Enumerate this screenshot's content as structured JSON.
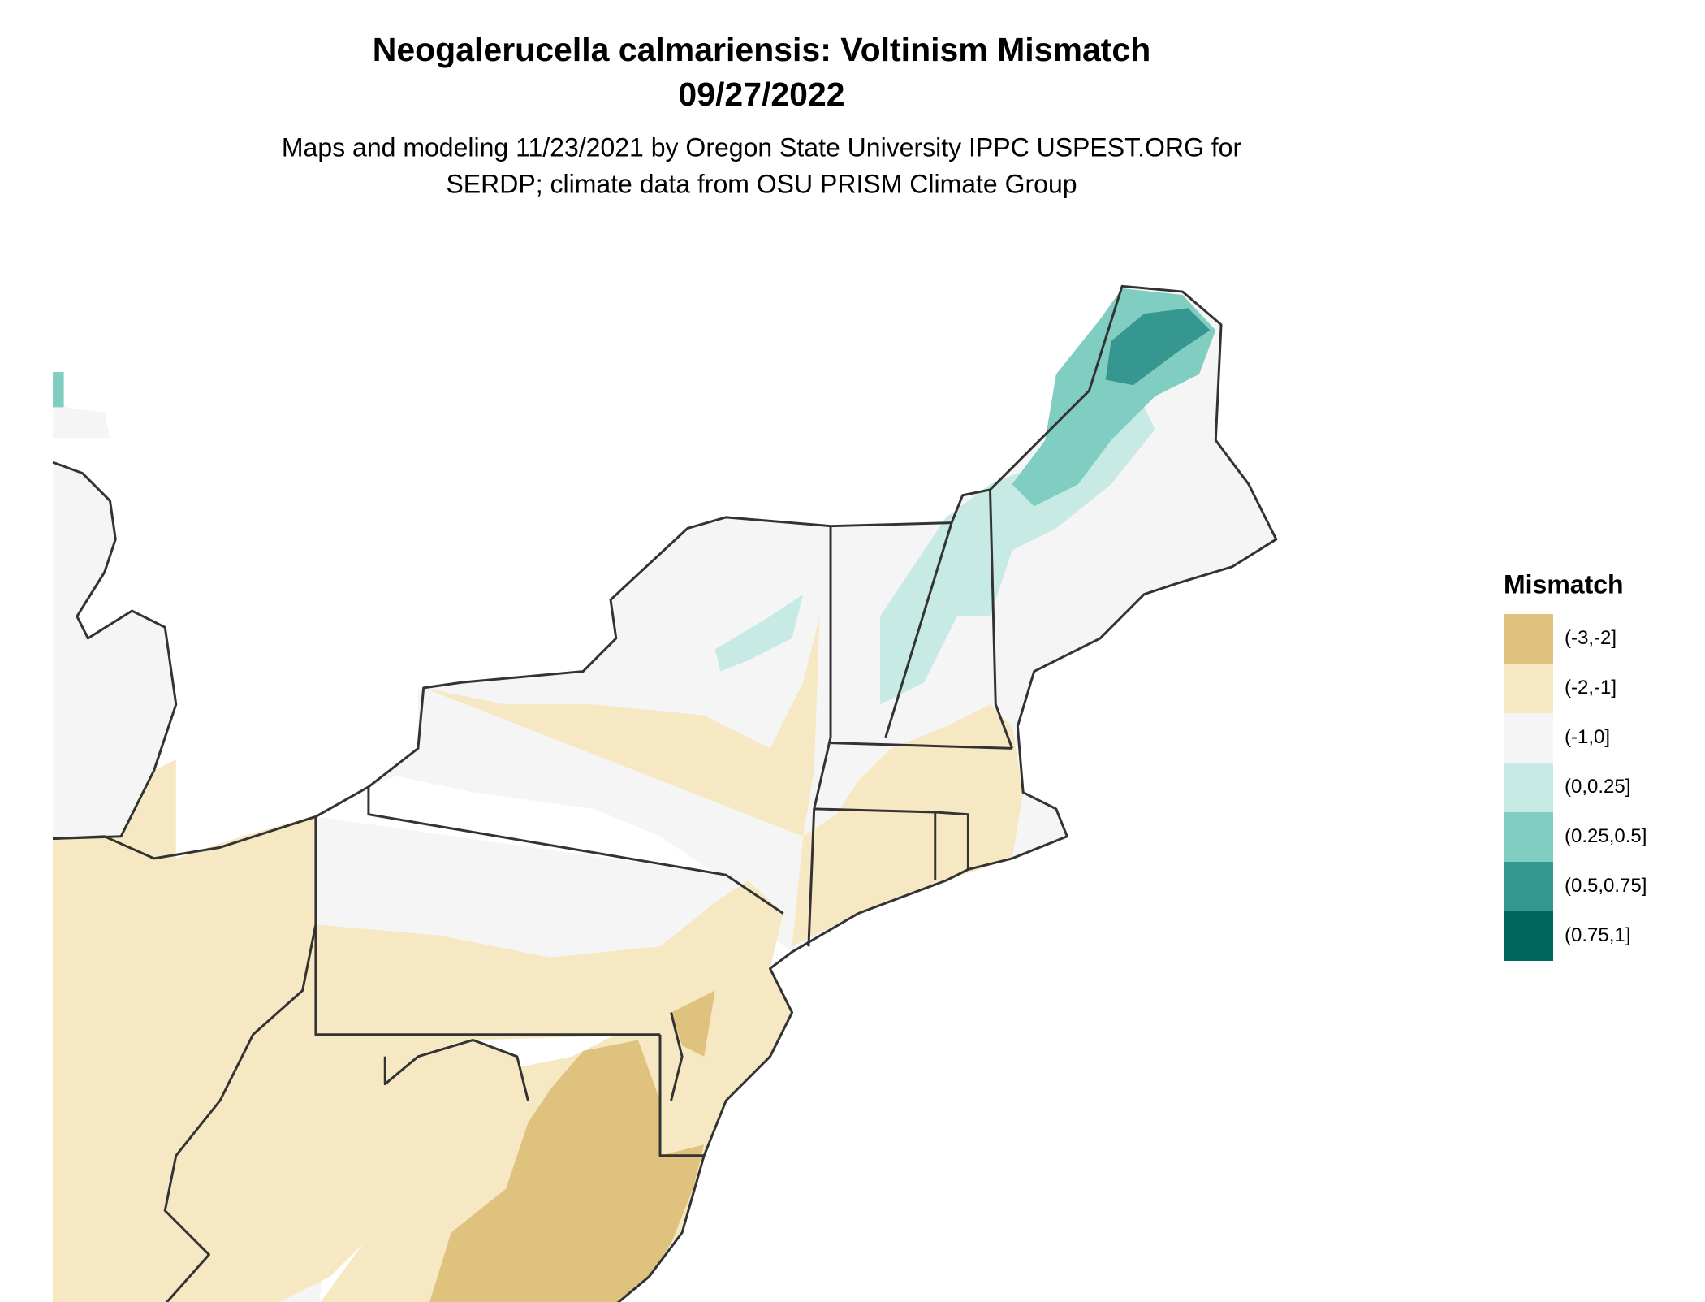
{
  "title": "Neogalerucella calmariensis: Voltinism Mismatch",
  "date": "09/27/2022",
  "subtitle": [
    "Maps and modeling 11/23/2021 by Oregon State University IPPC USPEST.ORG for",
    "SERDP; climate data from OSU PRISM Climate Group"
  ],
  "legend": {
    "title": "Mismatch",
    "items": [
      {
        "label": "(-3,-2]",
        "color": "#dfc27d"
      },
      {
        "label": "(-2,-1]",
        "color": "#f6e8c3"
      },
      {
        "label": "(-1,0]",
        "color": "#f5f5f5"
      },
      {
        "label": "(0,0.25]",
        "color": "#c7eae5"
      },
      {
        "label": "(0.25,0.5]",
        "color": "#80cdc1"
      },
      {
        "label": "(0.5,0.75]",
        "color": "#35978f"
      },
      {
        "label": "(0.75,1]",
        "color": "#01665e"
      }
    ]
  }
}
